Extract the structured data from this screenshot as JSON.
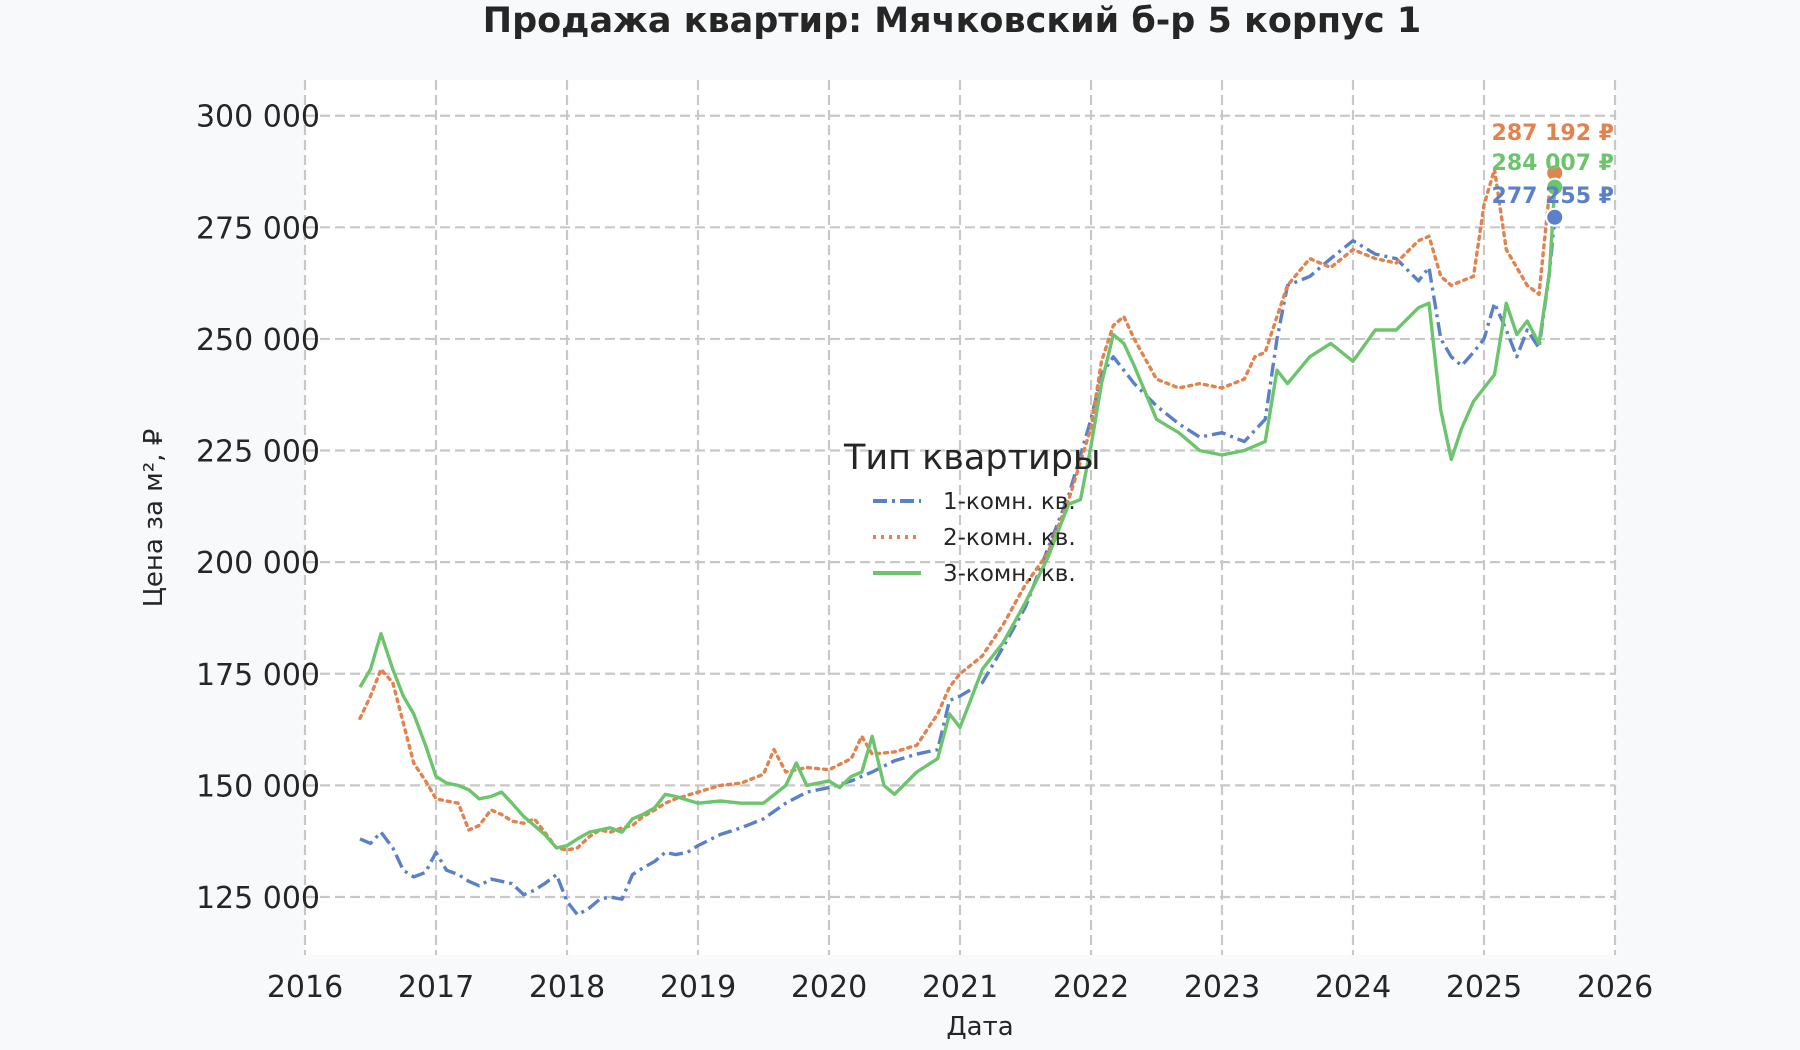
{
  "chart_data": {
    "type": "line",
    "title": "Продажа квартир: Мячковский б-р 5 корпус 1",
    "xlabel": "Дата",
    "ylabel": "Цена за м², ₽",
    "xlim": [
      2016,
      2026
    ],
    "ylim": [
      112000,
      308000
    ],
    "x_ticks": [
      2016,
      2017,
      2018,
      2019,
      2020,
      2021,
      2022,
      2023,
      2024,
      2025,
      2026
    ],
    "x_tick_labels": [
      "2016",
      "2017",
      "2018",
      "2019",
      "2020",
      "2021",
      "2022",
      "2023",
      "2024",
      "2025",
      "2026"
    ],
    "y_ticks": [
      125000,
      150000,
      175000,
      200000,
      225000,
      250000,
      275000,
      300000
    ],
    "y_tick_labels": [
      "125 000",
      "150 000",
      "175 000",
      "200 000",
      "225 000",
      "250 000",
      "275 000",
      "300 000"
    ],
    "grid": true,
    "legend": {
      "title": "Тип квартиры",
      "placement": "center"
    },
    "series": [
      {
        "name": "1-комн. кв.",
        "color": "#5a80c7",
        "dash": "dashdot",
        "end_label": "277 255 ₽",
        "end_value": 277255,
        "points": [
          [
            2016.42,
            138000
          ],
          [
            2016.5,
            137000
          ],
          [
            2016.58,
            139500
          ],
          [
            2016.67,
            136000
          ],
          [
            2016.75,
            131000
          ],
          [
            2016.83,
            129500
          ],
          [
            2016.92,
            130500
          ],
          [
            2017.0,
            135000
          ],
          [
            2017.08,
            131000
          ],
          [
            2017.17,
            130000
          ],
          [
            2017.25,
            128500
          ],
          [
            2017.33,
            127500
          ],
          [
            2017.42,
            129000
          ],
          [
            2017.5,
            128500
          ],
          [
            2017.58,
            128000
          ],
          [
            2017.67,
            125500
          ],
          [
            2017.75,
            126500
          ],
          [
            2017.83,
            128000
          ],
          [
            2017.92,
            130000
          ],
          [
            2018.0,
            124000
          ],
          [
            2018.08,
            121000
          ],
          [
            2018.17,
            122500
          ],
          [
            2018.25,
            124500
          ],
          [
            2018.33,
            125000
          ],
          [
            2018.42,
            124500
          ],
          [
            2018.5,
            130000
          ],
          [
            2018.58,
            131500
          ],
          [
            2018.67,
            133000
          ],
          [
            2018.75,
            135000
          ],
          [
            2018.83,
            134500
          ],
          [
            2018.92,
            135000
          ],
          [
            2019.0,
            136500
          ],
          [
            2019.17,
            139000
          ],
          [
            2019.33,
            140500
          ],
          [
            2019.5,
            142500
          ],
          [
            2019.67,
            146000
          ],
          [
            2019.83,
            148500
          ],
          [
            2020.0,
            149500
          ],
          [
            2020.17,
            151000
          ],
          [
            2020.33,
            153000
          ],
          [
            2020.5,
            155500
          ],
          [
            2020.67,
            157000
          ],
          [
            2020.83,
            158000
          ],
          [
            2020.92,
            169000
          ],
          [
            2021.0,
            170000
          ],
          [
            2021.17,
            173000
          ],
          [
            2021.33,
            181000
          ],
          [
            2021.5,
            190000
          ],
          [
            2021.67,
            203000
          ],
          [
            2021.83,
            215000
          ],
          [
            2022.0,
            232000
          ],
          [
            2022.08,
            242000
          ],
          [
            2022.17,
            246000
          ],
          [
            2022.25,
            243000
          ],
          [
            2022.33,
            240000
          ],
          [
            2022.5,
            235000
          ],
          [
            2022.67,
            231000
          ],
          [
            2022.83,
            228000
          ],
          [
            2023.0,
            229000
          ],
          [
            2023.17,
            227000
          ],
          [
            2023.33,
            232000
          ],
          [
            2023.42,
            250000
          ],
          [
            2023.5,
            262000
          ],
          [
            2023.67,
            264000
          ],
          [
            2023.83,
            268000
          ],
          [
            2024.0,
            272000
          ],
          [
            2024.17,
            269000
          ],
          [
            2024.33,
            268000
          ],
          [
            2024.5,
            263000
          ],
          [
            2024.58,
            266000
          ],
          [
            2024.67,
            250000
          ],
          [
            2024.75,
            246000
          ],
          [
            2024.83,
            244000
          ],
          [
            2024.92,
            247000
          ],
          [
            2025.0,
            250000
          ],
          [
            2025.08,
            258000
          ],
          [
            2025.17,
            252000
          ],
          [
            2025.25,
            246000
          ],
          [
            2025.33,
            252000
          ],
          [
            2025.42,
            248000
          ],
          [
            2025.5,
            265000
          ],
          [
            2025.54,
            277255
          ]
        ]
      },
      {
        "name": "2-комн. кв.",
        "color": "#e1824f",
        "dash": "dotted",
        "end_label": "287 192 ₽",
        "end_value": 287192,
        "points": [
          [
            2016.42,
            165000
          ],
          [
            2016.5,
            170000
          ],
          [
            2016.58,
            176000
          ],
          [
            2016.67,
            173000
          ],
          [
            2016.75,
            164000
          ],
          [
            2016.83,
            155000
          ],
          [
            2016.92,
            151000
          ],
          [
            2017.0,
            147000
          ],
          [
            2017.08,
            146500
          ],
          [
            2017.17,
            146000
          ],
          [
            2017.25,
            140000
          ],
          [
            2017.33,
            141000
          ],
          [
            2017.42,
            144500
          ],
          [
            2017.5,
            143500
          ],
          [
            2017.58,
            142000
          ],
          [
            2017.67,
            141500
          ],
          [
            2017.75,
            142500
          ],
          [
            2017.83,
            139500
          ],
          [
            2017.92,
            136000
          ],
          [
            2018.0,
            135500
          ],
          [
            2018.08,
            136000
          ],
          [
            2018.17,
            138500
          ],
          [
            2018.25,
            140000
          ],
          [
            2018.33,
            139500
          ],
          [
            2018.42,
            140500
          ],
          [
            2018.5,
            141000
          ],
          [
            2018.58,
            143000
          ],
          [
            2018.67,
            144500
          ],
          [
            2018.75,
            146000
          ],
          [
            2018.83,
            147000
          ],
          [
            2019.0,
            148500
          ],
          [
            2019.17,
            150000
          ],
          [
            2019.33,
            150500
          ],
          [
            2019.5,
            152500
          ],
          [
            2019.58,
            158000
          ],
          [
            2019.67,
            153000
          ],
          [
            2019.83,
            154000
          ],
          [
            2020.0,
            153500
          ],
          [
            2020.17,
            156000
          ],
          [
            2020.25,
            161000
          ],
          [
            2020.33,
            157000
          ],
          [
            2020.5,
            157500
          ],
          [
            2020.67,
            159000
          ],
          [
            2020.83,
            166000
          ],
          [
            2020.92,
            172000
          ],
          [
            2021.0,
            175000
          ],
          [
            2021.17,
            179000
          ],
          [
            2021.33,
            186000
          ],
          [
            2021.5,
            195000
          ],
          [
            2021.67,
            202000
          ],
          [
            2021.83,
            214000
          ],
          [
            2022.0,
            230000
          ],
          [
            2022.08,
            245000
          ],
          [
            2022.17,
            253000
          ],
          [
            2022.25,
            255000
          ],
          [
            2022.33,
            250000
          ],
          [
            2022.5,
            241000
          ],
          [
            2022.67,
            239000
          ],
          [
            2022.83,
            240000
          ],
          [
            2023.0,
            239000
          ],
          [
            2023.17,
            241000
          ],
          [
            2023.25,
            246000
          ],
          [
            2023.33,
            247000
          ],
          [
            2023.42,
            255000
          ],
          [
            2023.5,
            262000
          ],
          [
            2023.67,
            268000
          ],
          [
            2023.83,
            266000
          ],
          [
            2024.0,
            270000
          ],
          [
            2024.17,
            268000
          ],
          [
            2024.33,
            267000
          ],
          [
            2024.5,
            272000
          ],
          [
            2024.58,
            273000
          ],
          [
            2024.67,
            264000
          ],
          [
            2024.75,
            262000
          ],
          [
            2024.83,
            263000
          ],
          [
            2024.92,
            264000
          ],
          [
            2025.0,
            280000
          ],
          [
            2025.08,
            288000
          ],
          [
            2025.17,
            270000
          ],
          [
            2025.25,
            266000
          ],
          [
            2025.33,
            262000
          ],
          [
            2025.42,
            260000
          ],
          [
            2025.5,
            283000
          ],
          [
            2025.54,
            287192
          ]
        ]
      },
      {
        "name": "3-комн. кв.",
        "color": "#6cc56c",
        "dash": "solid",
        "end_label": "284 007 ₽",
        "end_value": 284007,
        "points": [
          [
            2016.42,
            172000
          ],
          [
            2016.5,
            176000
          ],
          [
            2016.58,
            184000
          ],
          [
            2016.67,
            176000
          ],
          [
            2016.75,
            170000
          ],
          [
            2016.83,
            166000
          ],
          [
            2016.92,
            159000
          ],
          [
            2017.0,
            152000
          ],
          [
            2017.08,
            150500
          ],
          [
            2017.17,
            150000
          ],
          [
            2017.25,
            149000
          ],
          [
            2017.33,
            147000
          ],
          [
            2017.42,
            147500
          ],
          [
            2017.5,
            148500
          ],
          [
            2017.58,
            146000
          ],
          [
            2017.67,
            143000
          ],
          [
            2017.75,
            141000
          ],
          [
            2017.83,
            139000
          ],
          [
            2017.92,
            136000
          ],
          [
            2018.0,
            136500
          ],
          [
            2018.08,
            138000
          ],
          [
            2018.17,
            139500
          ],
          [
            2018.25,
            140000
          ],
          [
            2018.33,
            140500
          ],
          [
            2018.42,
            139500
          ],
          [
            2018.5,
            142500
          ],
          [
            2018.58,
            143500
          ],
          [
            2018.67,
            145000
          ],
          [
            2018.75,
            148000
          ],
          [
            2018.83,
            147500
          ],
          [
            2019.0,
            146000
          ],
          [
            2019.17,
            146500
          ],
          [
            2019.33,
            146000
          ],
          [
            2019.5,
            146000
          ],
          [
            2019.67,
            150000
          ],
          [
            2019.75,
            155000
          ],
          [
            2019.83,
            150000
          ],
          [
            2020.0,
            151000
          ],
          [
            2020.08,
            149500
          ],
          [
            2020.17,
            152000
          ],
          [
            2020.25,
            153000
          ],
          [
            2020.33,
            161000
          ],
          [
            2020.42,
            150000
          ],
          [
            2020.5,
            148000
          ],
          [
            2020.67,
            153000
          ],
          [
            2020.83,
            156000
          ],
          [
            2020.92,
            166000
          ],
          [
            2021.0,
            163000
          ],
          [
            2021.08,
            169000
          ],
          [
            2021.17,
            176000
          ],
          [
            2021.33,
            182000
          ],
          [
            2021.5,
            191000
          ],
          [
            2021.67,
            201000
          ],
          [
            2021.83,
            213000
          ],
          [
            2021.92,
            214000
          ],
          [
            2022.0,
            226000
          ],
          [
            2022.08,
            240000
          ],
          [
            2022.17,
            251000
          ],
          [
            2022.25,
            249000
          ],
          [
            2022.33,
            244000
          ],
          [
            2022.5,
            232000
          ],
          [
            2022.67,
            229000
          ],
          [
            2022.83,
            225000
          ],
          [
            2023.0,
            224000
          ],
          [
            2023.17,
            225000
          ],
          [
            2023.33,
            227000
          ],
          [
            2023.42,
            243000
          ],
          [
            2023.5,
            240000
          ],
          [
            2023.67,
            246000
          ],
          [
            2023.83,
            249000
          ],
          [
            2024.0,
            245000
          ],
          [
            2024.17,
            252000
          ],
          [
            2024.33,
            252000
          ],
          [
            2024.5,
            257000
          ],
          [
            2024.58,
            258000
          ],
          [
            2024.67,
            234000
          ],
          [
            2024.75,
            223000
          ],
          [
            2024.83,
            230000
          ],
          [
            2024.92,
            236000
          ],
          [
            2025.0,
            239000
          ],
          [
            2025.08,
            242000
          ],
          [
            2025.17,
            258000
          ],
          [
            2025.25,
            251000
          ],
          [
            2025.33,
            254000
          ],
          [
            2025.42,
            249000
          ],
          [
            2025.5,
            265000
          ],
          [
            2025.54,
            284007
          ]
        ]
      }
    ]
  }
}
